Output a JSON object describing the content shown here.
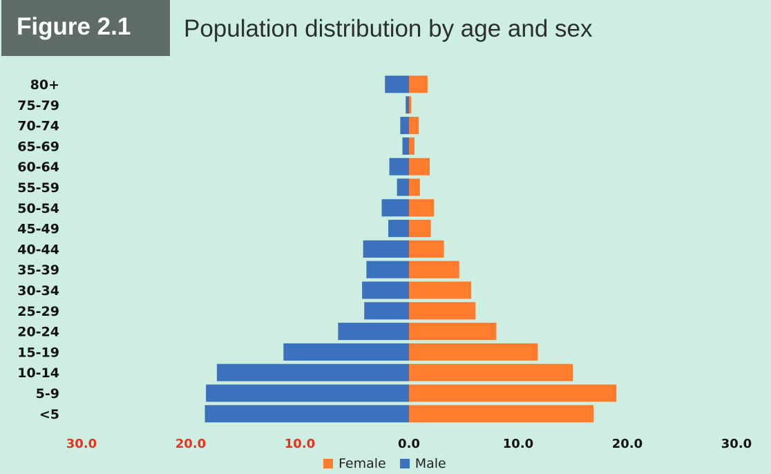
{
  "figure": {
    "label": "Figure 2.1",
    "title": "Population distribution by age and sex"
  },
  "colors": {
    "background": "#cdeee0",
    "male": "#3a72bd",
    "female": "#ff7b2e",
    "negative_tick": "#e8321e",
    "positive_tick": "#111111"
  },
  "chart_data": {
    "type": "bar",
    "orientation": "horizontal-diverging",
    "title": "Population distribution by age and sex",
    "categories": [
      "80+",
      "75-79",
      "70-74",
      "65-69",
      "60-64",
      "55-59",
      "50-54",
      "45-49",
      "40-44",
      "35-39",
      "30-34",
      "25-29",
      "20-24",
      "15-19",
      "10-14",
      "5-9",
      "<5"
    ],
    "series": [
      {
        "name": "Male",
        "values": [
          2.2,
          0.3,
          0.8,
          0.6,
          1.8,
          1.1,
          2.5,
          1.9,
          4.2,
          3.9,
          4.3,
          4.1,
          6.5,
          11.5,
          17.6,
          18.6,
          18.7
        ]
      },
      {
        "name": "Female",
        "values": [
          1.7,
          0.2,
          0.9,
          0.5,
          1.9,
          1.0,
          2.3,
          2.0,
          3.2,
          4.6,
          5.7,
          6.1,
          8.0,
          11.8,
          15.0,
          19.0,
          16.9
        ]
      }
    ],
    "xlim": [
      -30,
      30
    ],
    "xticks": [
      -30,
      -20,
      -10,
      0,
      10,
      20,
      30
    ],
    "xtick_labels": [
      "30.0",
      "20.0",
      "10.0",
      "0.0",
      "10.0",
      "20.0",
      "30.0"
    ],
    "legend": {
      "position": "bottom",
      "entries": [
        "Female",
        "Male"
      ]
    },
    "grid": false
  }
}
